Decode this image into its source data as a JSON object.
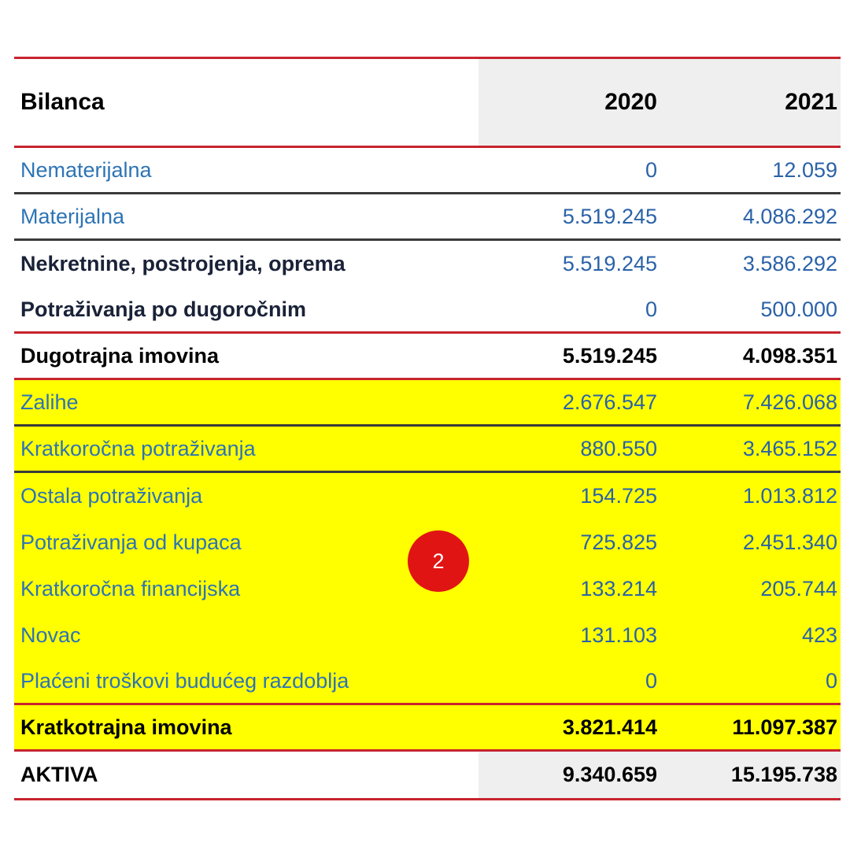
{
  "header": {
    "title": "Bilanca",
    "col_2020": "2020",
    "col_2021": "2021"
  },
  "rows": [
    {
      "label": "Nematerijalna",
      "v2020": "0",
      "v2021": "12.059"
    },
    {
      "label": "Materijalna",
      "v2020": "5.519.245",
      "v2021": "4.086.292"
    },
    {
      "label": "Nekretnine, postrojenja, oprema",
      "v2020": "5.519.245",
      "v2021": "3.586.292"
    },
    {
      "label": "Potraživanja po dugoročnim",
      "v2020": "0",
      "v2021": "500.000"
    },
    {
      "label": "Dugotrajna imovina",
      "v2020": "5.519.245",
      "v2021": "4.098.351"
    },
    {
      "label": "Zalihe",
      "v2020": "2.676.547",
      "v2021": "7.426.068"
    },
    {
      "label": "Kratkoročna potraživanja",
      "v2020": "880.550",
      "v2021": "3.465.152"
    },
    {
      "label": "Ostala potraživanja",
      "v2020": "154.725",
      "v2021": "1.013.812"
    },
    {
      "label": "Potraživanja od kupaca",
      "v2020": "725.825",
      "v2021": "2.451.340"
    },
    {
      "label": "Kratkoročna financijska",
      "v2020": "133.214",
      "v2021": "205.744"
    },
    {
      "label": "Novac",
      "v2020": "131.103",
      "v2021": "423"
    },
    {
      "label": "Plaćeni troškovi budućeg razdoblja",
      "v2020": "0",
      "v2021": "0"
    },
    {
      "label": "Kratkotrajna imovina",
      "v2020": "3.821.414",
      "v2021": "11.097.387"
    },
    {
      "label": "AKTIVA",
      "v2020": "9.340.659",
      "v2021": "15.195.738"
    }
  ],
  "badge": {
    "label": "2"
  },
  "colors": {
    "red-line": "#C7242E",
    "dark-line": "#3A3A3A",
    "yellow": "#FFFF00",
    "grey-band": "#EFEFEF",
    "blue-label": "#2E74B5",
    "blue-value": "#2A62A8",
    "dark-label": "#1A2238",
    "black": "#000000",
    "badge-red": "#E11414",
    "badge-text": "#FFFFFF"
  }
}
